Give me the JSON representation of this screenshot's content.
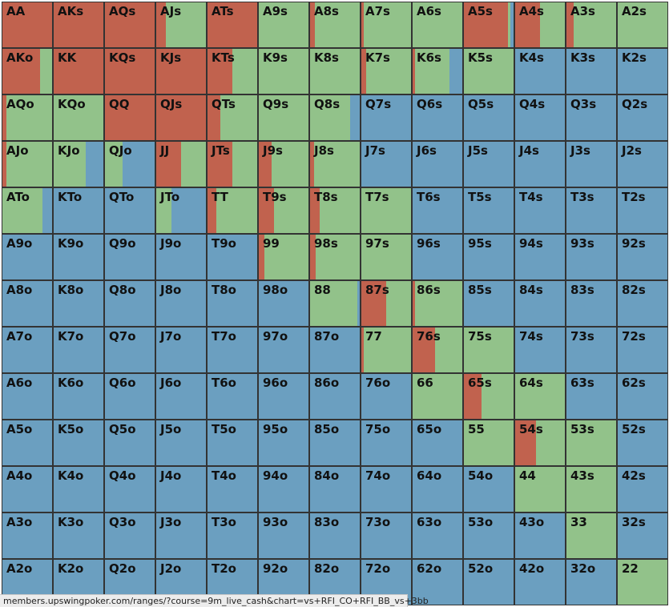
{
  "colors": {
    "raise": "#c1624e",
    "call": "#92c28a",
    "fold": "#6b9fc0"
  },
  "status_url": "members.upswingpoker.com/ranges/?course=9m_live_cash&chart=vs+RFI_CO+RFI_BB_vs+3bb",
  "rows": [
    [
      [
        "AA",
        1,
        0
      ],
      [
        "AKs",
        1,
        0
      ],
      [
        "AQs",
        1,
        0
      ],
      [
        "AJs",
        0.2,
        0.8
      ],
      [
        "ATs",
        1,
        0
      ],
      [
        "A9s",
        0,
        1
      ],
      [
        "A8s",
        0.1,
        0.9
      ],
      [
        "A7s",
        0.05,
        0.95
      ],
      [
        "A6s",
        0,
        1
      ],
      [
        "A5s",
        0.88,
        0.06
      ],
      [
        "A4s",
        0.5,
        0.5
      ],
      [
        "A3s",
        0.15,
        0.85
      ],
      [
        "A2s",
        0,
        1
      ]
    ],
    [
      [
        "AKo",
        0.75,
        0.25
      ],
      [
        "KK",
        1,
        0
      ],
      [
        "KQs",
        1,
        0
      ],
      [
        "KJs",
        1,
        0
      ],
      [
        "KTs",
        0.5,
        0.5
      ],
      [
        "K9s",
        0,
        1
      ],
      [
        "K8s",
        0,
        1
      ],
      [
        "K7s",
        0.1,
        0.9
      ],
      [
        "K6s",
        0.05,
        0.7
      ],
      [
        "K5s",
        0,
        1
      ],
      [
        "K4s",
        0,
        0
      ],
      [
        "K3s",
        0,
        0
      ],
      [
        "K2s",
        0,
        0
      ]
    ],
    [
      [
        "AQo",
        0.08,
        0.92
      ],
      [
        "KQo",
        0,
        1
      ],
      [
        "QQ",
        1,
        0
      ],
      [
        "QJs",
        1,
        0
      ],
      [
        "QTs",
        0.25,
        0.75
      ],
      [
        "Q9s",
        0,
        1
      ],
      [
        "Q8s",
        0,
        0.8
      ],
      [
        "Q7s",
        0,
        0
      ],
      [
        "Q6s",
        0,
        0
      ],
      [
        "Q5s",
        0,
        0
      ],
      [
        "Q4s",
        0,
        0
      ],
      [
        "Q3s",
        0,
        0
      ],
      [
        "Q2s",
        0,
        0
      ]
    ],
    [
      [
        "AJo",
        0.08,
        0.92
      ],
      [
        "KJo",
        0,
        0.65
      ],
      [
        "QJo",
        0,
        0.35
      ],
      [
        "JJ",
        0.5,
        0.5
      ],
      [
        "JTs",
        0.5,
        0.5
      ],
      [
        "J9s",
        0.25,
        0.75
      ],
      [
        "J8s",
        0.08,
        0.92
      ],
      [
        "J7s",
        0,
        0
      ],
      [
        "J6s",
        0,
        0
      ],
      [
        "J5s",
        0,
        0
      ],
      [
        "J4s",
        0,
        0
      ],
      [
        "J3s",
        0,
        0
      ],
      [
        "J2s",
        0,
        0
      ]
    ],
    [
      [
        "ATo",
        0,
        0.8
      ],
      [
        "KTo",
        0,
        0
      ],
      [
        "QTo",
        0,
        0
      ],
      [
        "JTo",
        0,
        0.3
      ],
      [
        "TT",
        0.18,
        0.82
      ],
      [
        "T9s",
        0.3,
        0.7
      ],
      [
        "T8s",
        0.2,
        0.8
      ],
      [
        "T7s",
        0,
        1
      ],
      [
        "T6s",
        0,
        0
      ],
      [
        "T5s",
        0,
        0
      ],
      [
        "T4s",
        0,
        0
      ],
      [
        "T3s",
        0,
        0
      ],
      [
        "T2s",
        0,
        0
      ]
    ],
    [
      [
        "A9o",
        0,
        0
      ],
      [
        "K9o",
        0,
        0
      ],
      [
        "Q9o",
        0,
        0
      ],
      [
        "J9o",
        0,
        0
      ],
      [
        "T9o",
        0,
        0
      ],
      [
        "99",
        0.12,
        0.88
      ],
      [
        "98s",
        0.12,
        0.88
      ],
      [
        "97s",
        0,
        1
      ],
      [
        "96s",
        0,
        0
      ],
      [
        "95s",
        0,
        0
      ],
      [
        "94s",
        0,
        0
      ],
      [
        "93s",
        0,
        0
      ],
      [
        "92s",
        0,
        0
      ]
    ],
    [
      [
        "A8o",
        0,
        0
      ],
      [
        "K8o",
        0,
        0
      ],
      [
        "Q8o",
        0,
        0
      ],
      [
        "J8o",
        0,
        0
      ],
      [
        "T8o",
        0,
        0
      ],
      [
        "98o",
        0,
        0
      ],
      [
        "88",
        0,
        0.95
      ],
      [
        "87s",
        0.5,
        0.5
      ],
      [
        "86s",
        0.05,
        0.95
      ],
      [
        "85s",
        0,
        0
      ],
      [
        "84s",
        0,
        0
      ],
      [
        "83s",
        0,
        0
      ],
      [
        "82s",
        0,
        0
      ]
    ],
    [
      [
        "A7o",
        0,
        0
      ],
      [
        "K7o",
        0,
        0
      ],
      [
        "Q7o",
        0,
        0
      ],
      [
        "J7o",
        0,
        0
      ],
      [
        "T7o",
        0,
        0
      ],
      [
        "97o",
        0,
        0
      ],
      [
        "87o",
        0,
        0
      ],
      [
        "77",
        0.05,
        0.95
      ],
      [
        "76s",
        0.45,
        0.55
      ],
      [
        "75s",
        0,
        1
      ],
      [
        "74s",
        0,
        0
      ],
      [
        "73s",
        0,
        0
      ],
      [
        "72s",
        0,
        0
      ]
    ],
    [
      [
        "A6o",
        0,
        0
      ],
      [
        "K6o",
        0,
        0
      ],
      [
        "Q6o",
        0,
        0
      ],
      [
        "J6o",
        0,
        0
      ],
      [
        "T6o",
        0,
        0
      ],
      [
        "96o",
        0,
        0
      ],
      [
        "86o",
        0,
        0
      ],
      [
        "76o",
        0,
        0
      ],
      [
        "66",
        0,
        1
      ],
      [
        "65s",
        0.35,
        0.65
      ],
      [
        "64s",
        0,
        1
      ],
      [
        "63s",
        0,
        0
      ],
      [
        "62s",
        0,
        0
      ]
    ],
    [
      [
        "A5o",
        0,
        0
      ],
      [
        "K5o",
        0,
        0
      ],
      [
        "Q5o",
        0,
        0
      ],
      [
        "J5o",
        0,
        0
      ],
      [
        "T5o",
        0,
        0
      ],
      [
        "95o",
        0,
        0
      ],
      [
        "85o",
        0,
        0
      ],
      [
        "75o",
        0,
        0
      ],
      [
        "65o",
        0,
        0
      ],
      [
        "55",
        0,
        1
      ],
      [
        "54s",
        0.42,
        0.58
      ],
      [
        "53s",
        0,
        1
      ],
      [
        "52s",
        0,
        0
      ]
    ],
    [
      [
        "A4o",
        0,
        0
      ],
      [
        "K4o",
        0,
        0
      ],
      [
        "Q4o",
        0,
        0
      ],
      [
        "J4o",
        0,
        0
      ],
      [
        "T4o",
        0,
        0
      ],
      [
        "94o",
        0,
        0
      ],
      [
        "84o",
        0,
        0
      ],
      [
        "74o",
        0,
        0
      ],
      [
        "64o",
        0,
        0
      ],
      [
        "54o",
        0,
        0
      ],
      [
        "44",
        0,
        1
      ],
      [
        "43s",
        0,
        1
      ],
      [
        "42s",
        0,
        0
      ]
    ],
    [
      [
        "A3o",
        0,
        0
      ],
      [
        "K3o",
        0,
        0
      ],
      [
        "Q3o",
        0,
        0
      ],
      [
        "J3o",
        0,
        0
      ],
      [
        "T3o",
        0,
        0
      ],
      [
        "93o",
        0,
        0
      ],
      [
        "83o",
        0,
        0
      ],
      [
        "73o",
        0,
        0
      ],
      [
        "63o",
        0,
        0
      ],
      [
        "53o",
        0,
        0
      ],
      [
        "43o",
        0,
        0
      ],
      [
        "33",
        0,
        1
      ],
      [
        "32s",
        0,
        0
      ]
    ],
    [
      [
        "A2o",
        0,
        0
      ],
      [
        "K2o",
        0,
        0
      ],
      [
        "Q2o",
        0,
        0
      ],
      [
        "J2o",
        0,
        0
      ],
      [
        "T2o",
        0,
        0
      ],
      [
        "92o",
        0,
        0
      ],
      [
        "82o",
        0,
        0
      ],
      [
        "72o",
        0,
        0
      ],
      [
        "62o",
        0,
        0
      ],
      [
        "52o",
        0,
        0
      ],
      [
        "42o",
        0,
        0
      ],
      [
        "32o",
        0,
        0
      ],
      [
        "22",
        0,
        1
      ]
    ]
  ]
}
